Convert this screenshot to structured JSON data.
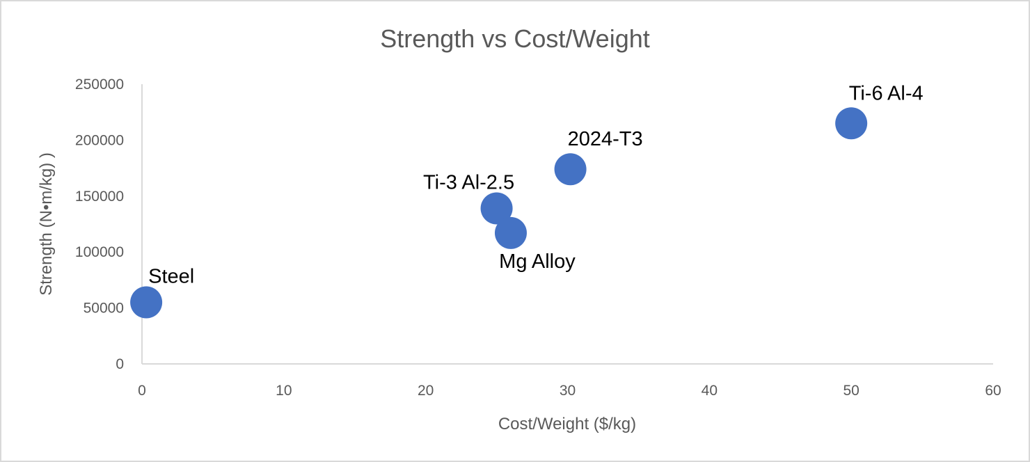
{
  "chart_data": {
    "type": "scatter",
    "title": "Strength vs Cost/Weight",
    "xlabel": "Cost/Weight  ($/kg)",
    "ylabel": "Strength (N•m/kg) )",
    "xlim": [
      0,
      60
    ],
    "ylim": [
      0,
      250000
    ],
    "xticks": [
      0,
      10,
      20,
      30,
      40,
      50,
      60
    ],
    "yticks": [
      0,
      50000,
      100000,
      150000,
      200000,
      250000
    ],
    "grid": false,
    "legend": "none",
    "marker_color": "#4472c4",
    "points": [
      {
        "label": "Steel",
        "x": 0.3,
        "y": 55000,
        "label_pos": "above-right"
      },
      {
        "label": "Ti-3 Al-2.5",
        "x": 25,
        "y": 139000,
        "label_pos": "above-left"
      },
      {
        "label": "Mg Alloy",
        "x": 26,
        "y": 117000,
        "label_pos": "below"
      },
      {
        "label": "2024-T3",
        "x": 30.2,
        "y": 174000,
        "label_pos": "above"
      },
      {
        "label": "Ti-6 Al-4",
        "x": 50,
        "y": 215000,
        "label_pos": "above"
      }
    ]
  }
}
